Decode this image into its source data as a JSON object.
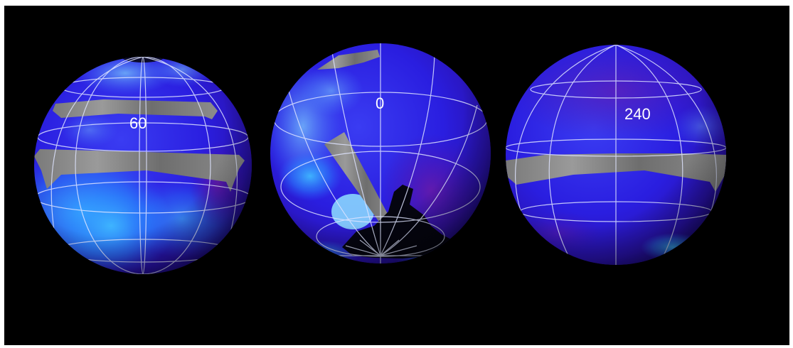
{
  "figure": {
    "background": "#000000",
    "grid_color": "#dfe4ff",
    "swath_color": "#8a8a8a",
    "globes": [
      {
        "id": "globe-60",
        "label": "60"
      },
      {
        "id": "globe-0",
        "label": "0"
      },
      {
        "id": "globe-240",
        "label": "240"
      }
    ]
  }
}
